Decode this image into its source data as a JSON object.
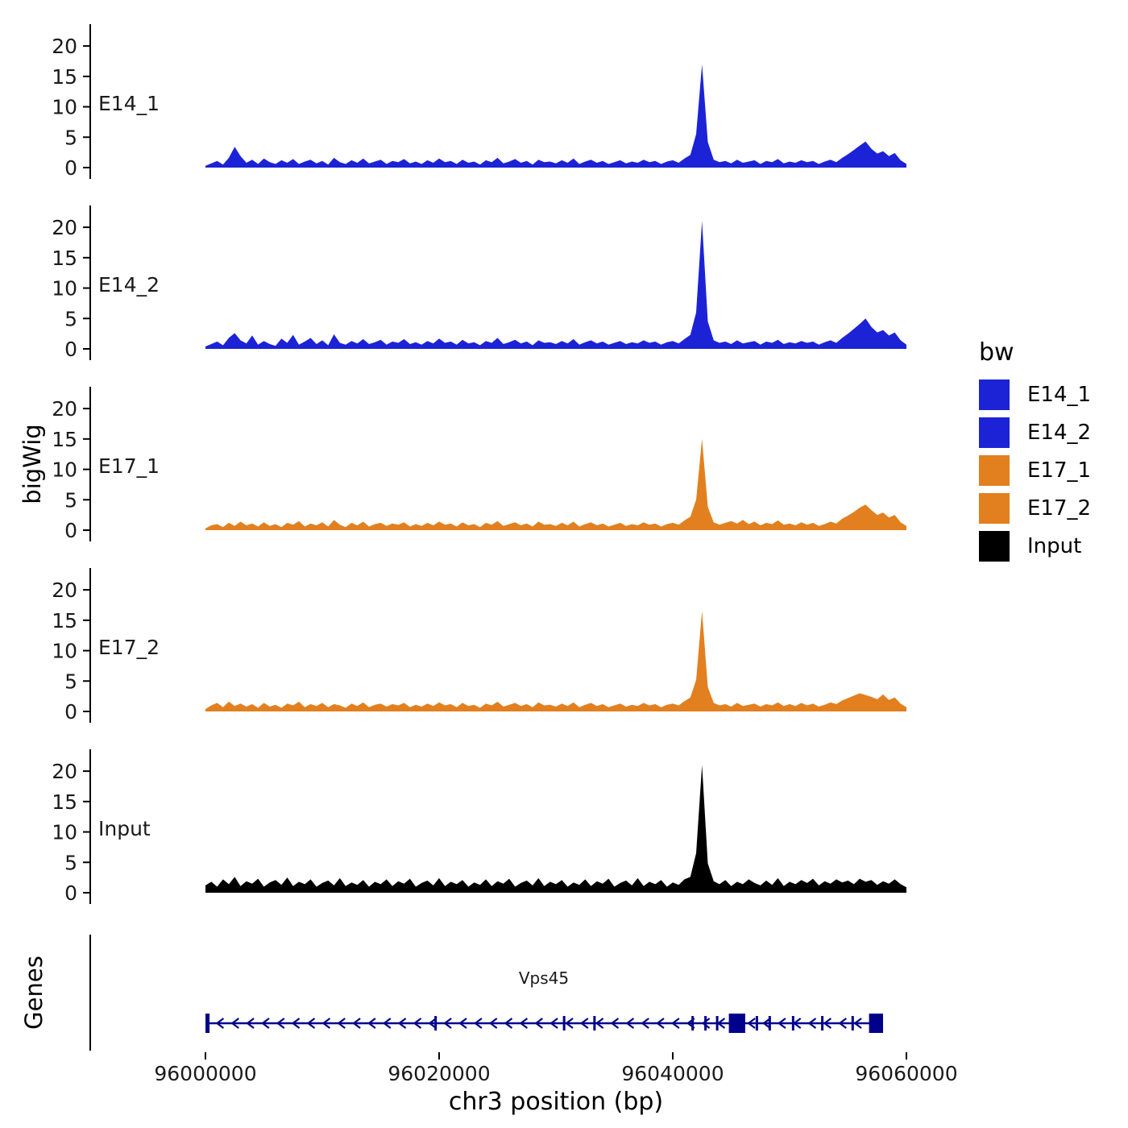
{
  "figure": {
    "y_axis_title": "bigWig",
    "genes_axis_title": "Genes",
    "x_axis_title": "chr3 position (bp)",
    "x_ticks": [
      96000000,
      96020000,
      96040000,
      96060000
    ],
    "x_tick_labels": [
      "96000000",
      "96020000",
      "96040000",
      "96060000"
    ],
    "y_ticks": [
      0,
      5,
      10,
      15,
      20
    ],
    "y_tick_labels": [
      "0",
      "5",
      "10",
      "15",
      "20"
    ]
  },
  "legend": {
    "title": "bw",
    "items": [
      {
        "label": "E14_1",
        "color": "#1C23D6"
      },
      {
        "label": "E14_2",
        "color": "#1C23D6"
      },
      {
        "label": "E17_1",
        "color": "#E2801F"
      },
      {
        "label": "E17_2",
        "color": "#E2801F"
      },
      {
        "label": "Input",
        "color": "#000000"
      }
    ]
  },
  "chart_data": {
    "type": "area",
    "title": "",
    "xlabel": "chr3 position (bp)",
    "ylabel": "bigWig",
    "x_start": 96000000,
    "x_step": 500,
    "x_end": 96060000,
    "ylim": [
      0,
      22
    ],
    "y_ticks": [
      0,
      5,
      10,
      15,
      20
    ],
    "main_peak_position": 96042500,
    "series": [
      {
        "name": "E14_1",
        "color": "#1C23D6",
        "values": [
          0.3,
          0.7,
          1.1,
          0.5,
          1.6,
          3.4,
          1.9,
          0.8,
          1.3,
          0.6,
          1.5,
          0.9,
          0.6,
          1.2,
          0.8,
          1.4,
          0.6,
          1.0,
          1.3,
          0.7,
          1.1,
          0.5,
          1.6,
          0.9,
          0.6,
          1.2,
          0.8,
          1.5,
          0.7,
          1.0,
          1.3,
          0.6,
          1.1,
          0.9,
          1.4,
          0.7,
          1.0,
          0.6,
          1.2,
          0.8,
          1.5,
          0.9,
          1.1,
          0.6,
          1.3,
          0.8,
          1.0,
          0.5,
          1.2,
          0.9,
          1.6,
          0.7,
          1.0,
          1.4,
          0.8,
          1.1,
          0.5,
          1.3,
          0.9,
          1.0,
          0.7,
          1.2,
          0.8,
          1.5,
          0.6,
          1.0,
          1.3,
          0.8,
          1.1,
          0.6,
          0.9,
          1.2,
          0.7,
          1.0,
          0.8,
          1.3,
          0.9,
          1.1,
          0.6,
          1.0,
          1.2,
          0.8,
          1.5,
          2.1,
          5.5,
          17.0,
          4.2,
          1.3,
          0.9,
          1.1,
          0.7,
          1.3,
          0.8,
          1.0,
          1.2,
          0.6,
          1.1,
          0.9,
          1.4,
          0.7,
          1.0,
          0.8,
          1.2,
          0.9,
          1.1,
          0.6,
          1.0,
          1.3,
          0.9,
          1.6,
          2.2,
          2.9,
          3.6,
          4.3,
          3.1,
          2.3,
          2.7,
          1.9,
          2.4,
          1.2,
          0.6
        ]
      },
      {
        "name": "E14_2",
        "color": "#1C23D6",
        "values": [
          0.4,
          0.8,
          1.2,
          0.6,
          1.8,
          2.6,
          1.4,
          0.9,
          2.2,
          0.7,
          1.3,
          0.8,
          0.5,
          1.7,
          1.0,
          2.3,
          0.7,
          1.2,
          1.8,
          0.8,
          1.4,
          0.6,
          2.4,
          1.0,
          0.7,
          1.3,
          0.9,
          1.6,
          0.8,
          1.1,
          1.5,
          0.7,
          1.2,
          1.0,
          1.6,
          0.8,
          1.1,
          0.7,
          1.3,
          0.9,
          1.7,
          1.0,
          1.2,
          0.7,
          1.5,
          0.9,
          1.1,
          0.6,
          1.3,
          1.0,
          1.8,
          0.8,
          1.1,
          1.5,
          0.9,
          1.2,
          0.6,
          1.4,
          1.0,
          1.1,
          0.8,
          1.3,
          0.9,
          1.6,
          0.7,
          1.1,
          1.4,
          0.9,
          1.2,
          0.7,
          1.0,
          1.3,
          0.8,
          1.1,
          0.9,
          1.4,
          1.0,
          1.2,
          0.7,
          1.1,
          1.3,
          0.9,
          1.6,
          2.3,
          6.0,
          21.0,
          4.5,
          1.4,
          1.0,
          1.2,
          0.8,
          1.4,
          0.9,
          1.1,
          1.3,
          0.7,
          1.2,
          1.0,
          1.5,
          0.8,
          1.1,
          0.9,
          1.3,
          1.0,
          1.2,
          0.7,
          1.1,
          1.4,
          1.0,
          1.8,
          2.5,
          3.3,
          4.1,
          5.0,
          3.6,
          2.7,
          3.1,
          2.2,
          2.7,
          1.4,
          0.7
        ]
      },
      {
        "name": "E17_1",
        "color": "#E2801F",
        "values": [
          0.3,
          0.8,
          1.0,
          0.5,
          1.2,
          0.7,
          1.4,
          0.8,
          1.1,
          0.6,
          1.3,
          0.7,
          1.0,
          0.5,
          1.2,
          0.9,
          1.5,
          0.6,
          1.1,
          0.8,
          1.3,
          0.6,
          1.7,
          0.9,
          0.5,
          1.2,
          0.8,
          1.4,
          0.6,
          1.0,
          1.2,
          0.7,
          1.1,
          0.9,
          1.3,
          0.6,
          1.0,
          0.7,
          1.2,
          0.8,
          1.4,
          0.9,
          1.1,
          0.6,
          1.3,
          0.8,
          1.0,
          0.5,
          1.2,
          0.9,
          1.5,
          0.7,
          1.0,
          1.3,
          0.8,
          1.1,
          0.6,
          1.4,
          0.9,
          1.0,
          0.7,
          1.2,
          0.8,
          1.4,
          0.6,
          1.0,
          1.3,
          0.8,
          1.1,
          0.6,
          0.9,
          1.2,
          0.7,
          1.0,
          0.8,
          1.3,
          0.9,
          1.1,
          0.6,
          1.0,
          1.2,
          0.9,
          1.6,
          2.2,
          5.0,
          15.0,
          3.8,
          1.3,
          0.9,
          1.2,
          1.5,
          1.1,
          1.7,
          1.0,
          1.4,
          0.8,
          1.2,
          1.0,
          1.6,
          0.9,
          1.1,
          0.8,
          1.3,
          0.9,
          1.2,
          0.7,
          1.0,
          1.4,
          1.1,
          1.9,
          2.4,
          3.0,
          3.7,
          4.2,
          3.3,
          2.5,
          2.9,
          2.1,
          2.5,
          1.3,
          0.7
        ]
      },
      {
        "name": "E17_2",
        "color": "#E2801F",
        "values": [
          0.4,
          1.0,
          1.4,
          0.7,
          1.6,
          0.9,
          1.3,
          0.8,
          1.2,
          0.6,
          1.4,
          0.8,
          1.1,
          0.6,
          1.3,
          1.0,
          1.6,
          0.7,
          1.2,
          0.9,
          1.4,
          0.7,
          1.2,
          1.0,
          0.6,
          1.3,
          0.9,
          1.5,
          0.7,
          1.1,
          1.3,
          0.8,
          1.2,
          1.0,
          1.4,
          0.7,
          1.1,
          0.8,
          1.3,
          0.9,
          1.5,
          1.0,
          1.2,
          0.7,
          1.4,
          0.9,
          1.1,
          0.6,
          1.3,
          1.0,
          1.6,
          0.8,
          1.1,
          1.4,
          0.9,
          1.2,
          0.7,
          1.5,
          1.0,
          1.1,
          0.8,
          1.3,
          0.9,
          1.5,
          0.7,
          1.1,
          1.4,
          0.9,
          1.2,
          0.7,
          1.0,
          1.3,
          0.8,
          1.1,
          0.9,
          1.4,
          1.0,
          1.2,
          0.7,
          1.1,
          1.3,
          1.0,
          1.7,
          2.3,
          5.2,
          16.5,
          4.0,
          1.4,
          1.0,
          1.2,
          0.8,
          1.4,
          0.9,
          1.1,
          1.3,
          0.8,
          1.2,
          1.0,
          1.5,
          0.9,
          1.2,
          0.9,
          1.4,
          1.0,
          1.3,
          0.8,
          1.1,
          1.5,
          1.2,
          1.8,
          2.2,
          2.6,
          3.0,
          2.7,
          2.4,
          2.0,
          2.8,
          1.9,
          2.3,
          1.3,
          0.7
        ]
      },
      {
        "name": "Input",
        "color": "#000000",
        "values": [
          1.2,
          1.8,
          1.0,
          2.2,
          1.4,
          2.6,
          1.1,
          1.9,
          1.5,
          2.3,
          1.0,
          1.7,
          2.1,
          1.3,
          2.5,
          1.1,
          1.8,
          1.4,
          2.2,
          1.0,
          1.6,
          2.0,
          1.2,
          2.4,
          1.1,
          1.7,
          1.3,
          2.1,
          1.0,
          1.8,
          1.4,
          2.2,
          1.1,
          1.9,
          1.5,
          2.3,
          1.0,
          1.6,
          2.0,
          1.2,
          2.4,
          1.1,
          1.8,
          1.4,
          2.1,
          1.0,
          1.7,
          1.3,
          2.2,
          1.1,
          1.9,
          1.5,
          2.3,
          1.0,
          1.6,
          2.0,
          1.2,
          2.4,
          1.1,
          1.8,
          1.4,
          2.1,
          1.0,
          1.7,
          1.3,
          2.2,
          1.1,
          1.9,
          1.5,
          2.3,
          1.0,
          1.6,
          2.0,
          1.2,
          2.4,
          1.1,
          1.8,
          1.4,
          2.1,
          1.0,
          1.7,
          1.3,
          2.2,
          2.6,
          6.5,
          21.0,
          4.8,
          1.9,
          1.4,
          2.1,
          1.1,
          1.8,
          1.4,
          2.2,
          1.6,
          1.2,
          2.0,
          1.3,
          2.4,
          1.1,
          1.8,
          1.4,
          2.1,
          1.6,
          2.3,
          1.2,
          1.9,
          1.5,
          2.2,
          1.7,
          2.0,
          1.4,
          2.3,
          1.8,
          2.1,
          1.3,
          1.9,
          1.5,
          2.2,
          1.4,
          0.9
        ]
      }
    ],
    "gene_track": {
      "label": "Vps45",
      "gene_name": "Vps45",
      "strand": "-",
      "color": "#00008B",
      "start": 96000000,
      "end": 96058000,
      "exon_positions": [
        96019700,
        96030700,
        96033300,
        96041700,
        96042800,
        96043800,
        96047200,
        96048300,
        96050300,
        96052800,
        96055400
      ],
      "blocks": [
        {
          "start": 96000000,
          "end": 96000350
        },
        {
          "start": 96044800,
          "end": 96046200
        },
        {
          "start": 96056800,
          "end": 96058000
        }
      ]
    }
  }
}
